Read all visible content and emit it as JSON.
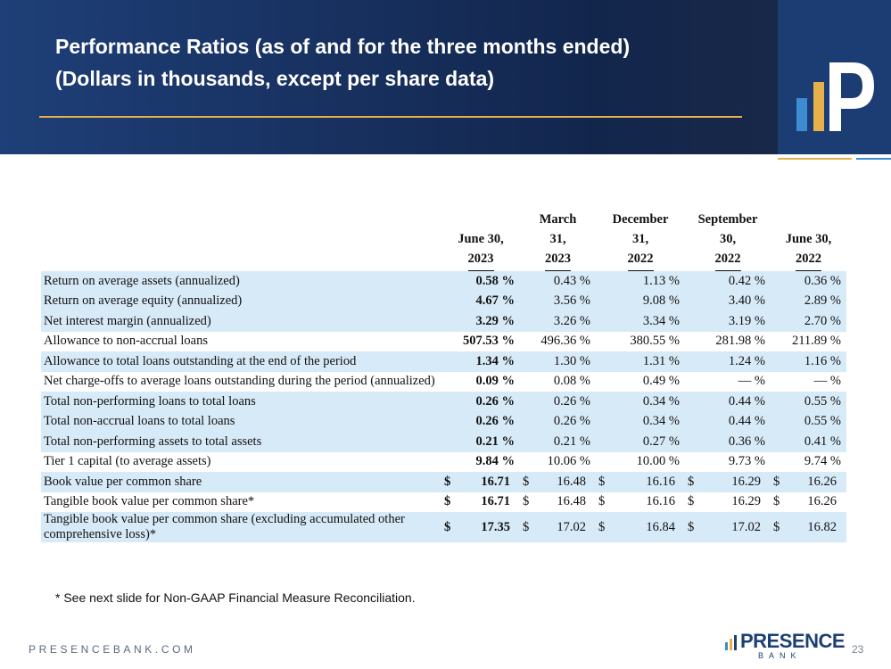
{
  "slide": {
    "title_line1": "Performance Ratios (as of and for the three months ended)",
    "title_line2": "(Dollars in thousands, except per share data)",
    "footnote": "* See next slide for Non-GAAP Financial Measure Reconciliation.",
    "footer_url": "PRESENCEBANK.COM",
    "brand_name": "PRESENCE",
    "brand_sub": "BANK",
    "page_number": "23",
    "colors": {
      "header": "#1e3f78",
      "gold": "#e8b04a",
      "shade": "#d7eaf7",
      "logo_bar_blue": "#3d8bd0"
    }
  },
  "columns": [
    {
      "line1": "",
      "line2": "June 30,",
      "line3": "2023"
    },
    {
      "line1": "March",
      "line2": "31,",
      "line3": "2023"
    },
    {
      "line1": "December",
      "line2": "31,",
      "line3": "2022"
    },
    {
      "line1": "September",
      "line2": "30,",
      "line3": "2022"
    },
    {
      "line1": "",
      "line2": "June 30,",
      "line3": "2022"
    }
  ],
  "rows": [
    {
      "label": "Return on average assets (annualized)",
      "values": [
        "0.58 %",
        "0.43 %",
        "1.13 %",
        "0.42 %",
        "0.36 %"
      ]
    },
    {
      "label": "Return on average equity (annualized)",
      "values": [
        "4.67 %",
        "3.56 %",
        "9.08 %",
        "3.40 %",
        "2.89 %"
      ]
    },
    {
      "label": "Net interest margin (annualized)",
      "values": [
        "3.29 %",
        "3.26 %",
        "3.34 %",
        "3.19 %",
        "2.70 %"
      ]
    },
    {
      "label": "Allowance to non-accrual loans",
      "values": [
        "507.53 %",
        "496.36 %",
        "380.55 %",
        "281.98 %",
        "211.89 %"
      ]
    },
    {
      "label": "Allowance to total loans outstanding at the end of the period",
      "values": [
        "1.34 %",
        "1.30 %",
        "1.31 %",
        "1.24 %",
        "1.16 %"
      ]
    },
    {
      "label": "Net charge-offs to average loans outstanding during the period (annualized)",
      "values": [
        "0.09 %",
        "0.08 %",
        "0.49 %",
        "— %",
        "— %"
      ]
    },
    {
      "label": "Total non-performing loans to total loans",
      "values": [
        "0.26 %",
        "0.26 %",
        "0.34 %",
        "0.44 %",
        "0.55 %"
      ]
    },
    {
      "label": "Total non-accrual loans to total loans",
      "values": [
        "0.26 %",
        "0.26 %",
        "0.34 %",
        "0.44 %",
        "0.55 %"
      ]
    },
    {
      "label": "Total non-performing assets to total assets",
      "values": [
        "0.21 %",
        "0.21 %",
        "0.27 %",
        "0.36 %",
        "0.41 %"
      ]
    },
    {
      "label": "Tier 1 capital (to average assets)",
      "values": [
        "9.84 %",
        "10.06 %",
        "10.00 %",
        "9.73 %",
        "9.74 %"
      ]
    },
    {
      "label": "Book value per common share",
      "dollar": "$",
      "values": [
        "16.71",
        "16.48",
        "16.16",
        "16.29",
        "16.26"
      ]
    },
    {
      "label": "Tangible book value per common share*",
      "dollar": "$",
      "values": [
        "16.71",
        "16.48",
        "16.16",
        "16.29",
        "16.26"
      ]
    },
    {
      "label": "Tangible book value per common share (excluding accumulated other comprehensive loss)*",
      "dollar": "$",
      "values": [
        "17.35",
        "17.02",
        "16.84",
        "17.02",
        "16.82"
      ]
    }
  ]
}
